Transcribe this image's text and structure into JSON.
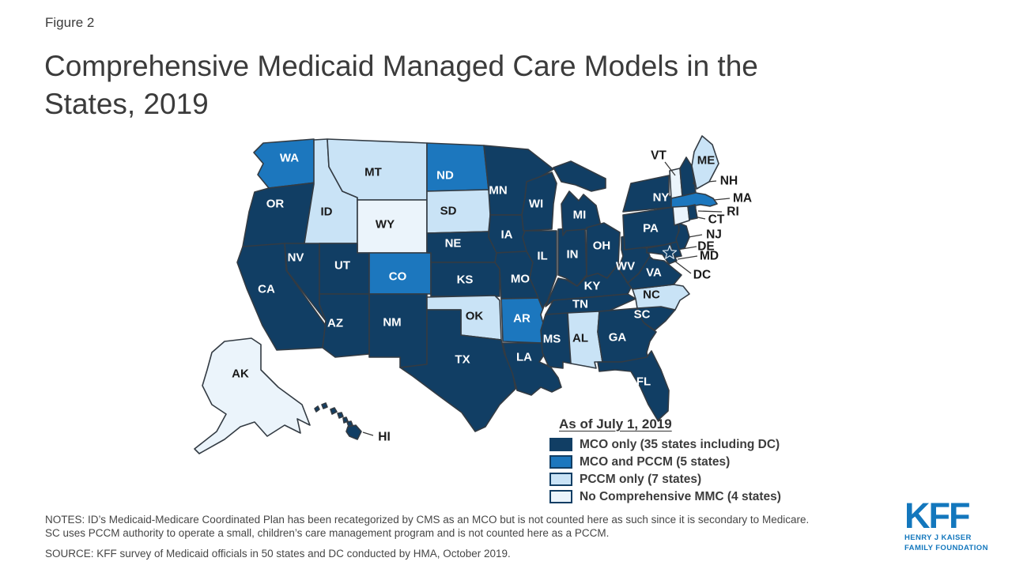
{
  "figure_label": "Figure 2",
  "title": "Comprehensive Medicaid Managed Care Models in the States, 2019",
  "title_lines": [
    "Comprehensive Medicaid Managed Care Models in the",
    "States, 2019"
  ],
  "legend": {
    "title": "As of July 1, 2019",
    "items": [
      {
        "key": "mco_only",
        "label": "MCO only (35 states including DC)",
        "color": "#113E64"
      },
      {
        "key": "mco_pccm",
        "label": "MCO and PCCM (5 states)",
        "color": "#1C77BE"
      },
      {
        "key": "pccm_only",
        "label": "PCCM only (7 states)",
        "color": "#C9E3F6"
      },
      {
        "key": "none",
        "label": "No Comprehensive MMC (4 states)",
        "color": "#EBF4FB"
      }
    ]
  },
  "map": {
    "label_on_dark": "#FFFFFF",
    "label_on_light": "#1A1A1A",
    "stroke_color": "#333B43",
    "states": [
      {
        "abbr": "WA",
        "category": "mco_pccm"
      },
      {
        "abbr": "OR",
        "category": "mco_only"
      },
      {
        "abbr": "CA",
        "category": "mco_only"
      },
      {
        "abbr": "NV",
        "category": "mco_only"
      },
      {
        "abbr": "ID",
        "category": "pccm_only"
      },
      {
        "abbr": "MT",
        "category": "pccm_only"
      },
      {
        "abbr": "WY",
        "category": "none"
      },
      {
        "abbr": "UT",
        "category": "mco_only"
      },
      {
        "abbr": "CO",
        "category": "mco_pccm"
      },
      {
        "abbr": "AZ",
        "category": "mco_only"
      },
      {
        "abbr": "NM",
        "category": "mco_only"
      },
      {
        "abbr": "ND",
        "category": "mco_pccm"
      },
      {
        "abbr": "SD",
        "category": "pccm_only"
      },
      {
        "abbr": "NE",
        "category": "mco_only"
      },
      {
        "abbr": "KS",
        "category": "mco_only"
      },
      {
        "abbr": "OK",
        "category": "pccm_only"
      },
      {
        "abbr": "TX",
        "category": "mco_only"
      },
      {
        "abbr": "MN",
        "category": "mco_only"
      },
      {
        "abbr": "IA",
        "category": "mco_only"
      },
      {
        "abbr": "MO",
        "category": "mco_only"
      },
      {
        "abbr": "AR",
        "category": "mco_pccm"
      },
      {
        "abbr": "LA",
        "category": "mco_only"
      },
      {
        "abbr": "WI",
        "category": "mco_only"
      },
      {
        "abbr": "IL",
        "category": "mco_only"
      },
      {
        "abbr": "IN",
        "category": "mco_only"
      },
      {
        "abbr": "MI",
        "category": "mco_only"
      },
      {
        "abbr": "OH",
        "category": "mco_only"
      },
      {
        "abbr": "KY",
        "category": "mco_only"
      },
      {
        "abbr": "TN",
        "category": "mco_only"
      },
      {
        "abbr": "MS",
        "category": "mco_only"
      },
      {
        "abbr": "AL",
        "category": "pccm_only"
      },
      {
        "abbr": "GA",
        "category": "mco_only"
      },
      {
        "abbr": "FL",
        "category": "mco_only"
      },
      {
        "abbr": "SC",
        "category": "mco_only"
      },
      {
        "abbr": "NC",
        "category": "pccm_only"
      },
      {
        "abbr": "VA",
        "category": "mco_only"
      },
      {
        "abbr": "WV",
        "category": "mco_only"
      },
      {
        "abbr": "PA",
        "category": "mco_only"
      },
      {
        "abbr": "NY",
        "category": "mco_only"
      },
      {
        "abbr": "NJ",
        "category": "mco_only"
      },
      {
        "abbr": "DE",
        "category": "mco_only"
      },
      {
        "abbr": "MD",
        "category": "mco_only"
      },
      {
        "abbr": "DC",
        "category": "mco_only"
      },
      {
        "abbr": "VT",
        "category": "none"
      },
      {
        "abbr": "NH",
        "category": "mco_only"
      },
      {
        "abbr": "MA",
        "category": "mco_pccm"
      },
      {
        "abbr": "CT",
        "category": "none"
      },
      {
        "abbr": "RI",
        "category": "mco_only"
      },
      {
        "abbr": "ME",
        "category": "pccm_only"
      },
      {
        "abbr": "AK",
        "category": "none"
      },
      {
        "abbr": "HI",
        "category": "mco_only"
      }
    ]
  },
  "notes": {
    "lines": [
      "NOTES: ID’s Medicaid-Medicare Coordinated Plan has been recategorized by CMS as an MCO but is not counted here as such since it is secondary to Medicare.",
      "SC uses PCCM authority to operate a small, children’s care management program and is not counted here as a PCCM."
    ]
  },
  "source": "SOURCE: KFF survey of Medicaid officials in 50 states and DC conducted by HMA, October 2019.",
  "logo": {
    "kff": "KFF",
    "line1": "HENRY J KAISER",
    "line2": "FAMILY FOUNDATION",
    "color": "#1377BD"
  },
  "chart_data": {
    "type": "choropleth",
    "title": "Comprehensive Medicaid Managed Care Models in the States, 2019",
    "as_of": "As of July 1, 2019",
    "legend_position": "bottom-right",
    "categories": [
      {
        "label": "MCO only (35 states including DC)",
        "count": 35,
        "states": [
          "AZ",
          "CA",
          "DC",
          "DE",
          "FL",
          "GA",
          "HI",
          "IA",
          "IL",
          "IN",
          "KS",
          "KY",
          "LA",
          "MD",
          "MI",
          "MN",
          "MO",
          "MS",
          "NE",
          "NH",
          "NJ",
          "NM",
          "NV",
          "NY",
          "OH",
          "OR",
          "PA",
          "RI",
          "SC",
          "TN",
          "TX",
          "UT",
          "VA",
          "WI",
          "WV"
        ]
      },
      {
        "label": "MCO and PCCM (5 states)",
        "count": 5,
        "states": [
          "AR",
          "CO",
          "MA",
          "ND",
          "WA"
        ]
      },
      {
        "label": "PCCM only (7 states)",
        "count": 7,
        "states": [
          "AL",
          "ID",
          "ME",
          "MT",
          "NC",
          "OK",
          "SD"
        ]
      },
      {
        "label": "No Comprehensive MMC (4 states)",
        "count": 4,
        "states": [
          "AK",
          "CT",
          "VT",
          "WY"
        ]
      }
    ]
  }
}
